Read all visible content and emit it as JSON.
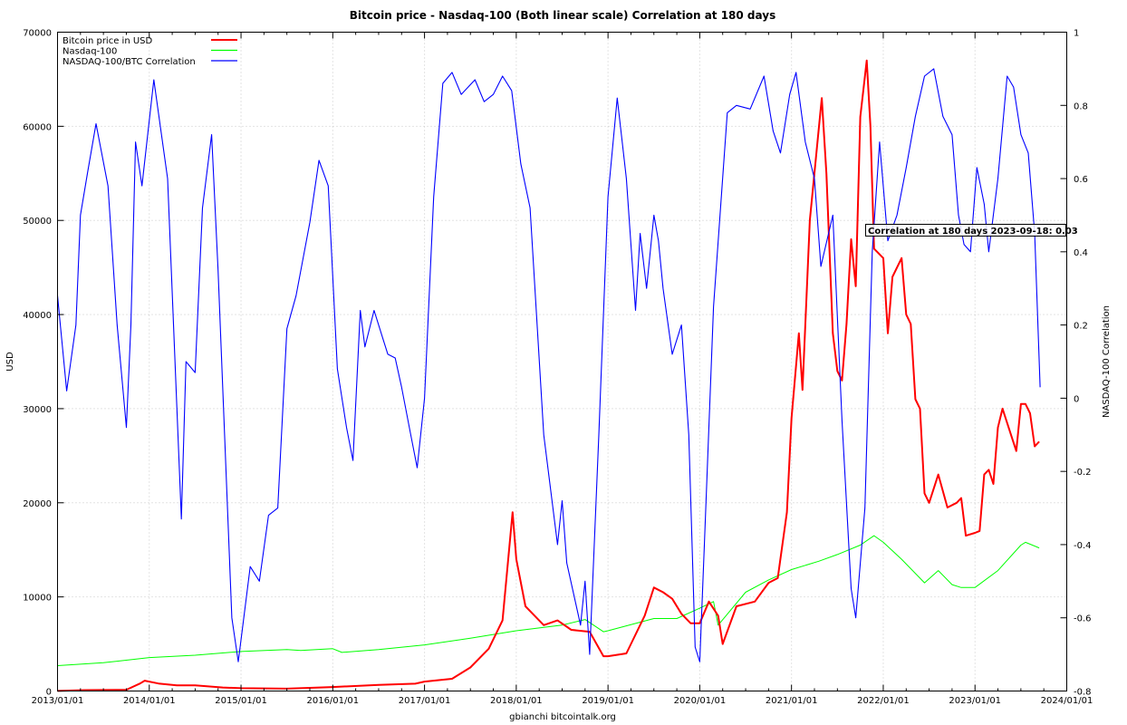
{
  "chart_data": {
    "type": "line",
    "title": "Bitcoin price - Nasdaq-100 (Both linear scale) Correlation at 180 days",
    "xlabel": "gbianchi bitcointalk.org",
    "ylabel": "USD",
    "y2label": "NASDAQ-100 Correlation",
    "xlim": [
      "2013/01/01",
      "2024/01/01"
    ],
    "ylim": [
      0,
      70000
    ],
    "y2lim": [
      -0.8,
      1
    ],
    "x_ticks": [
      "2013/01/01",
      "2014/01/01",
      "2015/01/01",
      "2016/01/01",
      "2017/01/01",
      "2018/01/01",
      "2019/01/01",
      "2020/01/01",
      "2021/01/01",
      "2022/01/01",
      "2023/01/01",
      "2024/01/01"
    ],
    "y_ticks": [
      "0",
      "10000",
      "20000",
      "30000",
      "40000",
      "50000",
      "60000",
      "70000"
    ],
    "y2_ticks": [
      "-0.8",
      "-0.6",
      "-0.4",
      "-0.2",
      "0",
      "0.2",
      "0.4",
      "0.6",
      "0.8",
      "1"
    ],
    "grid": true,
    "legend_position": "top-left",
    "legend": [
      {
        "label": "Bitcoin price in USD",
        "color": "#ff0000"
      },
      {
        "label": "Nasdaq-100",
        "color": "#00ff00"
      },
      {
        "label": "NASDAQ-100/BTC Correlation",
        "color": "#0000ff"
      }
    ],
    "annotation": "Correlation at 180 days 2023-09-18: 0.03",
    "series": [
      {
        "name": "Bitcoin price in USD",
        "axis": "left",
        "color": "#ff0000",
        "x": [
          2013.0,
          2013.3,
          2013.75,
          2013.9,
          2013.95,
          2014.1,
          2014.3,
          2014.5,
          2014.8,
          2015.0,
          2015.5,
          2016.0,
          2016.5,
          2016.9,
          2017.0,
          2017.3,
          2017.5,
          2017.7,
          2017.85,
          2017.96,
          2018.0,
          2018.1,
          2018.2,
          2018.3,
          2018.45,
          2018.6,
          2018.8,
          2018.95,
          2019.0,
          2019.2,
          2019.4,
          2019.5,
          2019.6,
          2019.7,
          2019.8,
          2019.9,
          2020.0,
          2020.1,
          2020.2,
          2020.25,
          2020.4,
          2020.6,
          2020.75,
          2020.85,
          2020.95,
          2021.0,
          2021.08,
          2021.12,
          2021.2,
          2021.28,
          2021.33,
          2021.38,
          2021.45,
          2021.5,
          2021.55,
          2021.6,
          2021.65,
          2021.7,
          2021.75,
          2021.82,
          2021.86,
          2021.9,
          2022.0,
          2022.05,
          2022.1,
          2022.2,
          2022.25,
          2022.3,
          2022.35,
          2022.4,
          2022.45,
          2022.5,
          2022.6,
          2022.7,
          2022.8,
          2022.85,
          2022.9,
          2023.0,
          2023.05,
          2023.1,
          2023.15,
          2023.2,
          2023.25,
          2023.3,
          2023.4,
          2023.45,
          2023.5,
          2023.55,
          2023.6,
          2023.65,
          2023.7
        ],
        "values": [
          13,
          100,
          130,
          800,
          1100,
          800,
          600,
          600,
          380,
          300,
          250,
          420,
          650,
          780,
          1000,
          1300,
          2500,
          4500,
          7500,
          19000,
          14000,
          9000,
          8000,
          7000,
          7500,
          6500,
          6300,
          3700,
          3700,
          4000,
          8000,
          11000,
          10500,
          9800,
          8200,
          7200,
          7200,
          9500,
          8000,
          5000,
          9000,
          9500,
          11500,
          12000,
          19000,
          29000,
          38000,
          32000,
          50000,
          58000,
          63000,
          55000,
          38000,
          34000,
          33000,
          39000,
          48000,
          43000,
          61000,
          67000,
          60000,
          47000,
          46000,
          38000,
          44000,
          46000,
          40000,
          39000,
          31000,
          30000,
          21000,
          20000,
          23000,
          19500,
          20000,
          20500,
          16500,
          16800,
          17000,
          23000,
          23500,
          22000,
          28000,
          30000,
          27000,
          25500,
          30500,
          30500,
          29500,
          26000,
          26500
        ]
      },
      {
        "name": "Nasdaq-100",
        "axis": "left",
        "color": "#00ff00",
        "x": [
          2013.0,
          2013.5,
          2014.0,
          2014.5,
          2015.0,
          2015.5,
          2015.65,
          2016.0,
          2016.1,
          2016.5,
          2017.0,
          2017.5,
          2018.0,
          2018.5,
          2018.75,
          2018.95,
          2019.0,
          2019.5,
          2019.75,
          2020.0,
          2020.15,
          2020.2,
          2020.5,
          2020.75,
          2021.0,
          2021.3,
          2021.5,
          2021.75,
          2021.9,
          2022.0,
          2022.2,
          2022.45,
          2022.6,
          2022.75,
          2022.85,
          2023.0,
          2023.25,
          2023.5,
          2023.55,
          2023.7
        ],
        "values": [
          2700,
          3000,
          3550,
          3800,
          4200,
          4400,
          4300,
          4500,
          4100,
          4400,
          4900,
          5600,
          6400,
          7000,
          7600,
          6300,
          6400,
          7700,
          7700,
          8800,
          9500,
          7000,
          10500,
          11800,
          12900,
          13800,
          14500,
          15500,
          16500,
          15800,
          14000,
          11500,
          12800,
          11300,
          11000,
          11000,
          12800,
          15500,
          15800,
          15200
        ]
      },
      {
        "name": "NASDAQ-100/BTC Correlation",
        "axis": "right",
        "color": "#0000ff",
        "x": [
          2013.0,
          2013.1,
          2013.2,
          2013.25,
          2013.33,
          2013.42,
          2013.55,
          2013.65,
          2013.75,
          2013.8,
          2013.85,
          2013.92,
          2014.05,
          2014.2,
          2014.35,
          2014.4,
          2014.5,
          2014.58,
          2014.68,
          2014.75,
          2014.9,
          2014.97,
          2015.1,
          2015.2,
          2015.3,
          2015.4,
          2015.5,
          2015.6,
          2015.75,
          2015.85,
          2015.95,
          2016.05,
          2016.15,
          2016.22,
          2016.3,
          2016.35,
          2016.45,
          2016.55,
          2016.6,
          2016.68,
          2016.75,
          2016.85,
          2016.92,
          2017.0,
          2017.1,
          2017.2,
          2017.3,
          2017.4,
          2017.55,
          2017.65,
          2017.75,
          2017.85,
          2017.95,
          2018.05,
          2018.15,
          2018.3,
          2018.45,
          2018.5,
          2018.55,
          2018.7,
          2018.75,
          2018.8,
          2018.9,
          2019.0,
          2019.1,
          2019.2,
          2019.3,
          2019.35,
          2019.42,
          2019.5,
          2019.55,
          2019.6,
          2019.7,
          2019.8,
          2019.88,
          2019.95,
          2020.0,
          2020.05,
          2020.15,
          2020.3,
          2020.4,
          2020.55,
          2020.7,
          2020.8,
          2020.88,
          2020.98,
          2021.05,
          2021.15,
          2021.25,
          2021.32,
          2021.45,
          2021.55,
          2021.65,
          2021.7,
          2021.8,
          2021.88,
          2021.96,
          2022.05,
          2022.15,
          2022.25,
          2022.35,
          2022.45,
          2022.55,
          2022.65,
          2022.75,
          2022.82,
          2022.88,
          2022.95,
          2023.02,
          2023.1,
          2023.15,
          2023.25,
          2023.35,
          2023.42,
          2023.5,
          2023.58,
          2023.65,
          2023.71
        ],
        "values": [
          0.28,
          0.02,
          0.2,
          0.5,
          0.62,
          0.75,
          0.58,
          0.2,
          -0.08,
          0.2,
          0.7,
          0.58,
          0.87,
          0.6,
          -0.33,
          0.1,
          0.07,
          0.52,
          0.72,
          0.35,
          -0.6,
          -0.72,
          -0.46,
          -0.5,
          -0.32,
          -0.3,
          0.19,
          0.28,
          0.48,
          0.65,
          0.58,
          0.08,
          -0.08,
          -0.17,
          0.24,
          0.14,
          0.24,
          0.16,
          0.12,
          0.11,
          0.03,
          -0.1,
          -0.19,
          0.0,
          0.55,
          0.86,
          0.89,
          0.83,
          0.87,
          0.81,
          0.83,
          0.88,
          0.84,
          0.64,
          0.52,
          -0.1,
          -0.4,
          -0.28,
          -0.45,
          -0.62,
          -0.5,
          -0.7,
          -0.1,
          0.55,
          0.82,
          0.6,
          0.24,
          0.45,
          0.3,
          0.5,
          0.43,
          0.3,
          0.12,
          0.2,
          -0.1,
          -0.68,
          -0.72,
          -0.4,
          0.25,
          0.78,
          0.8,
          0.79,
          0.88,
          0.73,
          0.67,
          0.83,
          0.89,
          0.7,
          0.6,
          0.36,
          0.5,
          -0.06,
          -0.52,
          -0.6,
          -0.3,
          0.4,
          0.7,
          0.43,
          0.5,
          0.63,
          0.77,
          0.88,
          0.9,
          0.77,
          0.72,
          0.5,
          0.42,
          0.4,
          0.63,
          0.53,
          0.4,
          0.6,
          0.88,
          0.85,
          0.72,
          0.67,
          0.45,
          0.03
        ]
      }
    ]
  }
}
